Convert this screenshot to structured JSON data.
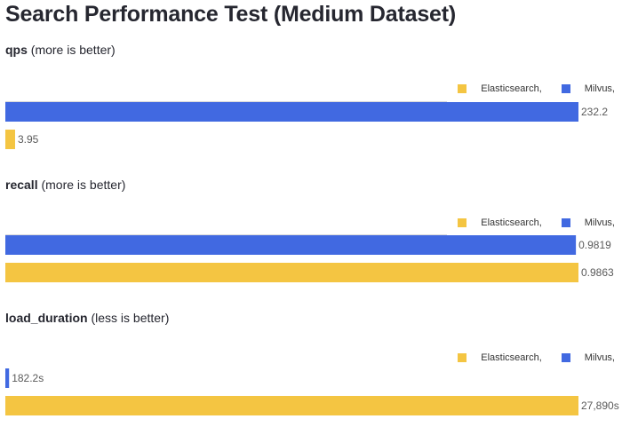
{
  "page_title": "Search Performance Test (Medium Dataset)",
  "colors": {
    "milvus": "#4169e1",
    "elasticsearch": "#f4c542"
  },
  "legend": {
    "elasticsearch_label": "Elasticsearch,",
    "milvus_label": "Milvus,"
  },
  "sections": [
    {
      "metric": "qps",
      "qualifier": "(more is better)"
    },
    {
      "metric": "recall",
      "qualifier": "(more is better)"
    },
    {
      "metric": "load_duration",
      "qualifier": "(less is better)"
    }
  ],
  "chart_data": [
    {
      "type": "bar",
      "title": "qps (more is better)",
      "orientation": "horizontal",
      "legend": "top-right",
      "series": [
        {
          "name": "Milvus,",
          "value": 232.2,
          "label": "232.2"
        },
        {
          "name": "Elasticsearch,",
          "value": 3.95,
          "label": "3.95"
        }
      ]
    },
    {
      "type": "bar",
      "title": "recall (more is better)",
      "orientation": "horizontal",
      "legend": "top-right",
      "series": [
        {
          "name": "Milvus,",
          "value": 0.9819,
          "label": "0.9819"
        },
        {
          "name": "Elasticsearch,",
          "value": 0.9863,
          "label": "0.9863"
        }
      ]
    },
    {
      "type": "bar",
      "title": "load_duration (less is better)",
      "orientation": "horizontal",
      "legend": "top-right",
      "series": [
        {
          "name": "Milvus,",
          "value": 182.2,
          "label": "182.2s"
        },
        {
          "name": "Elasticsearch,",
          "value": 27890,
          "label": "27,890s"
        }
      ]
    }
  ]
}
